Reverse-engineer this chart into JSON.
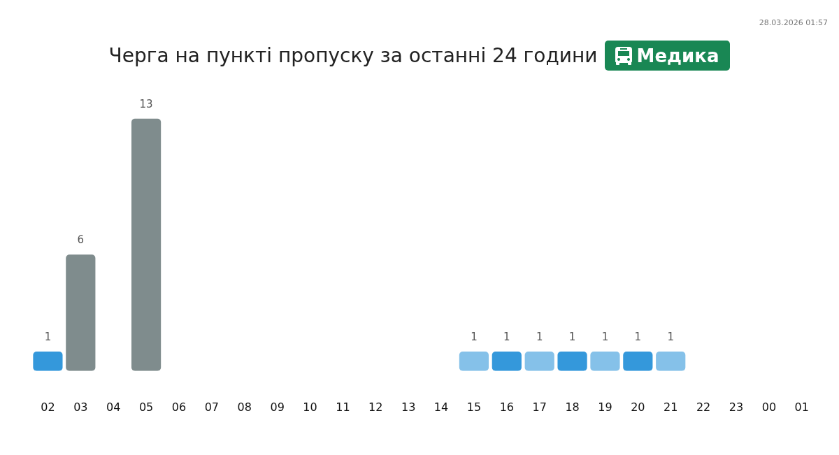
{
  "chart_data": {
    "type": "bar",
    "title": "Черга на пункті пропуску за останні 24 години",
    "subtitle": "Медика",
    "annotations": [
      "28.03.2026 01:57"
    ],
    "categories": [
      "02",
      "03",
      "04",
      "05",
      "06",
      "07",
      "08",
      "09",
      "10",
      "11",
      "12",
      "13",
      "14",
      "15",
      "16",
      "17",
      "18",
      "19",
      "20",
      "21",
      "22",
      "23",
      "00",
      "01"
    ],
    "values": [
      1,
      6,
      null,
      13,
      null,
      null,
      null,
      null,
      null,
      null,
      null,
      null,
      null,
      1,
      1,
      1,
      1,
      1,
      1,
      1,
      null,
      null,
      null,
      null
    ],
    "colors": [
      "#3498db",
      "#7f8c8d",
      null,
      "#7f8c8d",
      null,
      null,
      null,
      null,
      null,
      null,
      null,
      null,
      null,
      "#85c1e9",
      "#3498db",
      "#85c1e9",
      "#3498db",
      "#85c1e9",
      "#3498db",
      "#85c1e9",
      null,
      null,
      null,
      null
    ],
    "data_labels": true,
    "grid": false,
    "legend": false,
    "tick_labels": "x"
  }
}
